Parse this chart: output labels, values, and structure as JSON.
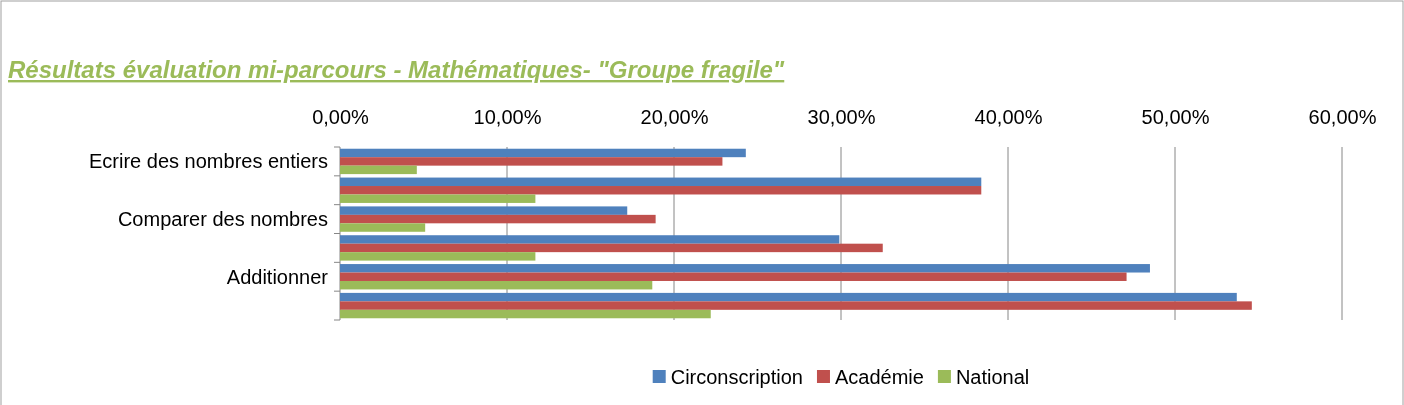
{
  "chart_data": {
    "type": "bar",
    "orientation": "horizontal",
    "title": "Résultats évaluation mi-parcours - Mathématiques- \"Groupe fragile\"",
    "categories": [
      "Ecrire des nombres entiers",
      null,
      "Comparer des nombres",
      null,
      "Additionner",
      null
    ],
    "series": [
      {
        "name": "Circonscription",
        "color": "#4f81bd",
        "values": [
          24.3,
          38.4,
          17.2,
          29.9,
          48.5,
          53.7
        ]
      },
      {
        "name": "Académie",
        "color": "#c0504d",
        "values": [
          22.9,
          38.4,
          18.9,
          32.5,
          47.1,
          54.6
        ]
      },
      {
        "name": "National",
        "color": "#9bbb59",
        "values": [
          4.6,
          11.7,
          5.1,
          11.7,
          18.7,
          22.2
        ]
      }
    ],
    "xlim": [
      0,
      60
    ],
    "xticks": [
      {
        "value": 0,
        "label": "0,00%"
      },
      {
        "value": 10,
        "label": "10,00%"
      },
      {
        "value": 20,
        "label": "20,00%"
      },
      {
        "value": 30,
        "label": "30,00%"
      },
      {
        "value": 40,
        "label": "40,00%"
      },
      {
        "value": 50,
        "label": "50,00%"
      },
      {
        "value": 60,
        "label": "60,00%"
      }
    ],
    "grid": "x",
    "legend": "bottom"
  }
}
